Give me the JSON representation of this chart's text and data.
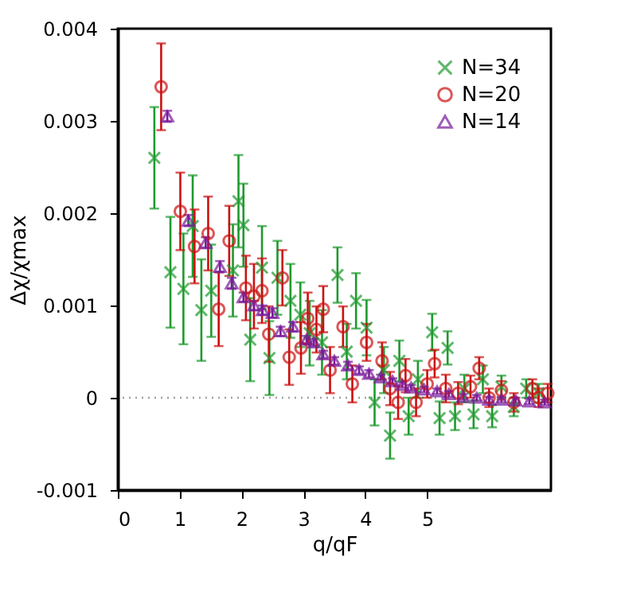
{
  "chart_data": {
    "type": "scatter",
    "xlabel": "q/qF",
    "ylabel": "Δχ/χmax",
    "xlim": [
      0,
      7
    ],
    "xticks": [
      0,
      1,
      2,
      3,
      4,
      5
    ],
    "ylim": [
      -0.001,
      0.004
    ],
    "yticks": [
      -0.001,
      0,
      0.001,
      0.002,
      0.003,
      0.004
    ],
    "grid": false,
    "legend": "top right",
    "ref_lines": [
      {
        "axis": "y",
        "value": 0,
        "color": "#a0a0a0",
        "line_style": "dotted"
      }
    ],
    "series": [
      {
        "name": "N=34",
        "color": "#1e9a2d",
        "marker": "cross",
        "x": [
          0.59,
          0.85,
          1.06,
          1.21,
          1.35,
          1.51,
          1.86,
          1.95,
          2.03,
          2.14,
          2.33,
          2.45,
          2.58,
          2.79,
          2.95,
          3.1,
          3.3,
          3.55,
          3.7,
          3.85,
          4.02,
          4.15,
          4.3,
          4.4,
          4.55,
          4.7,
          4.85,
          5.08,
          5.2,
          5.33,
          5.45,
          5.6,
          5.75,
          5.9,
          6.05,
          6.2,
          6.4,
          6.6,
          6.8
        ],
        "values": [
          0.0026,
          0.00136,
          0.00118,
          0.00186,
          0.00095,
          0.00116,
          0.00138,
          0.00213,
          0.00187,
          0.00063,
          0.00141,
          0.00043,
          0.0013,
          0.00105,
          0.0009,
          0.0007,
          0.0006,
          0.00133,
          0.0005,
          0.00105,
          0.00076,
          -5e-05,
          0.0003,
          -0.00041,
          0.0004,
          -0.0002,
          0.0002,
          0.00071,
          -0.00022,
          0.00054,
          -0.0002,
          0.0001,
          -0.00018,
          0.0002,
          -0.0002,
          0.00012,
          -0.0001,
          0.0001,
          5e-05
        ],
        "errors": [
          0.00055,
          0.0006,
          0.0006,
          0.00055,
          0.00055,
          0.0005,
          0.0005,
          0.0005,
          0.00045,
          0.00045,
          0.00045,
          0.0004,
          0.0004,
          0.0004,
          0.00035,
          0.00035,
          0.00035,
          0.0003,
          0.0003,
          0.0003,
          0.0003,
          0.00025,
          0.00025,
          0.00025,
          0.00022,
          0.0002,
          0.0002,
          0.0002,
          0.00018,
          0.00018,
          0.00015,
          0.00015,
          0.00015,
          0.00015,
          0.00012,
          0.00012,
          0.0001,
          0.0001,
          0.0001
        ]
      },
      {
        "name": "N=20",
        "color": "#cc1010",
        "marker": "circle",
        "x": [
          0.7,
          1.01,
          1.24,
          1.46,
          1.63,
          1.8,
          2.07,
          2.2,
          2.33,
          2.44,
          2.66,
          2.77,
          2.96,
          3.07,
          3.21,
          3.32,
          3.43,
          3.64,
          3.79,
          4.02,
          4.27,
          4.4,
          4.53,
          4.65,
          4.82,
          5.0,
          5.12,
          5.3,
          5.5,
          5.7,
          5.84,
          6.0,
          6.2,
          6.4,
          6.7,
          6.8,
          6.95
        ],
        "values": [
          0.00337,
          0.00202,
          0.00164,
          0.00178,
          0.00096,
          0.0017,
          0.00119,
          0.0011,
          0.00116,
          0.00069,
          0.0013,
          0.00044,
          0.00054,
          0.00086,
          0.00074,
          0.00096,
          0.0003,
          0.00077,
          0.00015,
          0.0006,
          0.0004,
          0.0001,
          -5e-05,
          0.00024,
          -5e-05,
          0.00015,
          0.00037,
          0.0001,
          5e-05,
          0.00012,
          0.00032,
          0,
          8e-05,
          -5e-05,
          0.0001,
          0,
          5e-05
        ],
        "errors": [
          0.00047,
          0.00042,
          0.0004,
          0.0004,
          0.0004,
          0.00038,
          0.00035,
          0.00035,
          0.00035,
          0.0003,
          0.0003,
          0.0003,
          0.00028,
          0.00028,
          0.00025,
          0.00025,
          0.00025,
          0.00022,
          0.0002,
          0.0002,
          0.0002,
          0.00018,
          0.00018,
          0.00018,
          0.00015,
          0.00015,
          0.00015,
          0.00015,
          0.00012,
          0.00012,
          0.00012,
          0.0001,
          0.0001,
          0.0001,
          0.0001,
          0.0001,
          0.0001
        ]
      },
      {
        "name": "N=14",
        "color": "#7a1a9a",
        "marker": "triangle",
        "x": [
          0.8,
          1.14,
          1.42,
          1.65,
          1.84,
          2.03,
          2.2,
          2.34,
          2.5,
          2.63,
          2.83,
          3.05,
          3.17,
          3.32,
          3.5,
          3.72,
          3.9,
          4.06,
          4.25,
          4.44,
          4.6,
          4.74,
          4.95,
          5.16,
          5.35,
          5.58,
          5.8,
          6.0,
          6.2,
          6.43,
          6.65,
          6.9
        ],
        "values": [
          0.00305,
          0.00192,
          0.00168,
          0.00142,
          0.00124,
          0.00109,
          0.001,
          0.00095,
          0.00092,
          0.00072,
          0.00077,
          0.00063,
          0.0006,
          0.00047,
          0.0004,
          0.00035,
          0.0003,
          0.00026,
          0.00022,
          0.00018,
          0.00014,
          0.00011,
          9e-05,
          7e-05,
          4e-05,
          1e-05,
          0,
          -2e-05,
          -2e-05,
          -3e-05,
          -4e-05,
          -5e-05
        ],
        "errors": [
          6e-05,
          6e-05,
          6e-05,
          6e-05,
          6e-05,
          5e-05,
          5e-05,
          5e-05,
          5e-05,
          5e-05,
          5e-05,
          4e-05,
          4e-05,
          4e-05,
          4e-05,
          4e-05,
          4e-05,
          4e-05,
          3e-05,
          3e-05,
          3e-05,
          3e-05,
          3e-05,
          3e-05,
          3e-05,
          3e-05,
          3e-05,
          3e-05,
          3e-05,
          3e-05,
          3e-05,
          3e-05
        ]
      }
    ]
  }
}
